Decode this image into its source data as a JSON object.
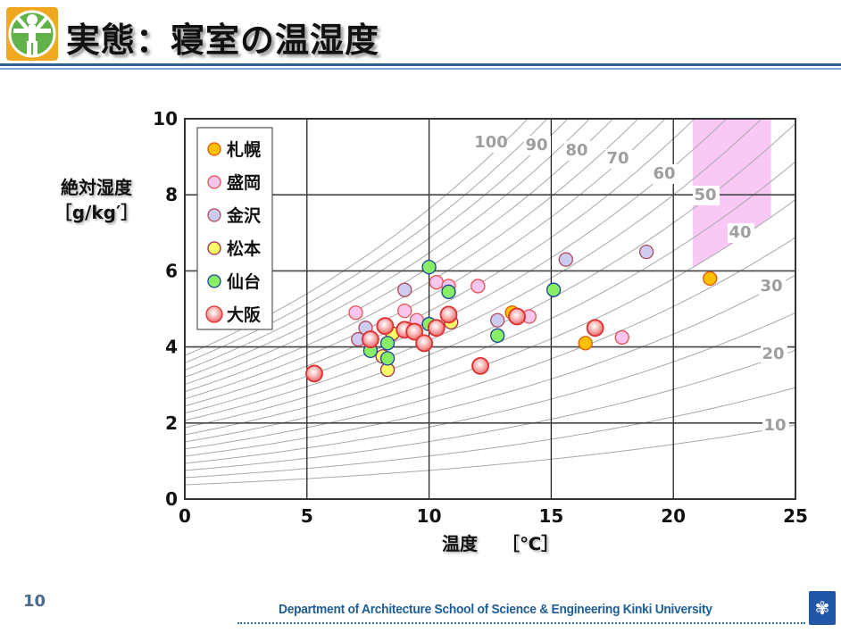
{
  "header": {
    "title": "実態：寝室の温湿度",
    "logo_icon": "vitruvian-man-icon"
  },
  "footer": {
    "page_number": "10",
    "department": "Department of Architecture  School of Science & Engineering  Kinki University",
    "emblem_icon": "university-emblem-icon"
  },
  "chart_data": {
    "type": "scatter",
    "title": "",
    "xlabel": "温度　 ［℃］",
    "ylabel_line1": "絶対湿度",
    "ylabel_line2": "［g/kg′］",
    "xlim": [
      0,
      25
    ],
    "ylim": [
      0,
      10
    ],
    "xticks": [
      "0",
      "5",
      "10",
      "15",
      "20",
      "25"
    ],
    "yticks": [
      "0",
      "2",
      "4",
      "6",
      "8",
      "10"
    ],
    "grid": true,
    "legend_position": "top-left",
    "rh_curves": [
      "10",
      "20",
      "30",
      "40",
      "50",
      "60",
      "70",
      "80",
      "90",
      "100"
    ],
    "comfort_zone": {
      "color": "#f9c8f5",
      "temp_range": [
        20.8,
        24
      ],
      "humidity_range": [
        6.1,
        10
      ]
    },
    "series": [
      {
        "name": "札幌",
        "fill": "#ffc000",
        "stroke": "#e05a00",
        "size": "small",
        "points": [
          [
            21.5,
            5.8
          ],
          [
            13.4,
            4.9
          ],
          [
            16.4,
            4.1
          ]
        ]
      },
      {
        "name": "盛岡",
        "fill": "#fbc6ee",
        "stroke": "#e8504f",
        "size": "small",
        "points": [
          [
            7.0,
            4.9
          ],
          [
            9.0,
            4.95
          ],
          [
            9.5,
            4.7
          ],
          [
            10.3,
            5.7
          ],
          [
            10.8,
            5.6
          ],
          [
            12.0,
            5.6
          ],
          [
            14.1,
            4.8
          ],
          [
            17.9,
            4.25
          ]
        ]
      },
      {
        "name": "金沢",
        "fill": "#ccccf0",
        "stroke": "#b04a5a",
        "size": "small",
        "points": [
          [
            7.1,
            4.2
          ],
          [
            7.4,
            4.5
          ],
          [
            9.0,
            5.5
          ],
          [
            12.8,
            4.7
          ],
          [
            15.6,
            6.3
          ],
          [
            18.9,
            6.5
          ]
        ]
      },
      {
        "name": "松本",
        "fill": "#ffff66",
        "stroke": "#a02a50",
        "size": "small",
        "points": [
          [
            8.1,
            3.75
          ],
          [
            8.3,
            3.4
          ],
          [
            8.5,
            4.35
          ],
          [
            10.9,
            4.65
          ]
        ]
      },
      {
        "name": "仙台",
        "fill": "#88ee66",
        "stroke": "#1a40a0",
        "size": "small",
        "points": [
          [
            7.6,
            3.9
          ],
          [
            8.3,
            4.1
          ],
          [
            8.3,
            3.7
          ],
          [
            10.0,
            6.1
          ],
          [
            10.0,
            4.6
          ],
          [
            10.8,
            5.45
          ],
          [
            12.8,
            4.3
          ],
          [
            15.1,
            5.5
          ]
        ]
      },
      {
        "name": "大阪",
        "fill": "#f4a0a0",
        "stroke": "#e03030",
        "size": "large",
        "points": [
          [
            5.3,
            3.3
          ],
          [
            7.6,
            4.2
          ],
          [
            8.2,
            4.55
          ],
          [
            9.0,
            4.45
          ],
          [
            9.4,
            4.4
          ],
          [
            9.8,
            4.1
          ],
          [
            10.3,
            4.5
          ],
          [
            10.8,
            4.85
          ],
          [
            12.1,
            3.5
          ],
          [
            13.6,
            4.8
          ],
          [
            16.8,
            4.5
          ]
        ]
      }
    ]
  }
}
